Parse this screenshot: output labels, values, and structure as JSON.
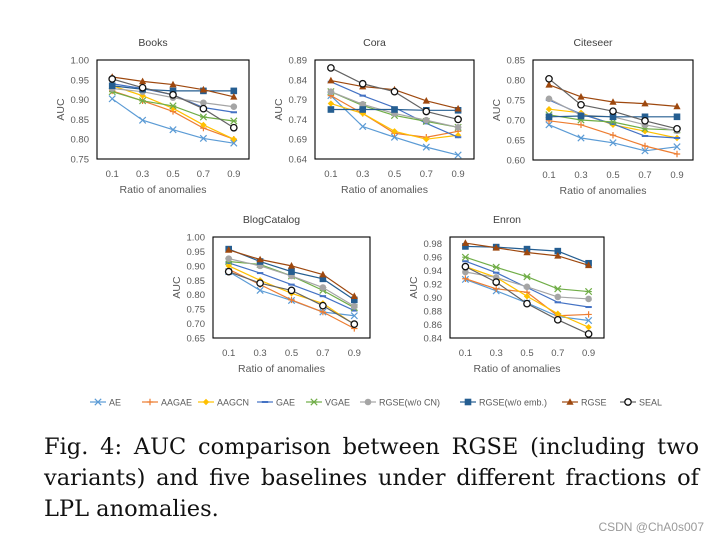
{
  "chart_data": [
    {
      "type": "line",
      "title": "Books",
      "xlabel": "Ratio of anomalies",
      "ylabel": "AUC",
      "categories": [
        "0.1",
        "0.3",
        "0.5",
        "0.7",
        "0.9"
      ],
      "ylim": [
        0.75,
        1.0
      ],
      "yticks": [
        "0.75",
        "0.80",
        "0.85",
        "0.90",
        "0.95",
        "1.00"
      ],
      "series": [
        {
          "name": "AE",
          "values": [
            0.902,
            0.848,
            0.824,
            0.802,
            0.79
          ]
        },
        {
          "name": "AAGAE",
          "values": [
            0.922,
            0.897,
            0.87,
            0.828,
            0.8
          ]
        },
        {
          "name": "AAGCN",
          "values": [
            0.935,
            0.91,
            0.878,
            0.836,
            0.8
          ]
        },
        {
          "name": "GAE",
          "values": [
            0.94,
            0.928,
            0.912,
            0.88,
            0.868
          ]
        },
        {
          "name": "VGAE",
          "values": [
            0.92,
            0.897,
            0.884,
            0.856,
            0.846
          ]
        },
        {
          "name": "RGSE(w/o CN)",
          "values": [
            0.928,
            0.92,
            0.905,
            0.892,
            0.882
          ]
        },
        {
          "name": "RGSE(w/o emb.)",
          "values": [
            0.935,
            0.926,
            0.922,
            0.922,
            0.922
          ]
        },
        {
          "name": "RGSE",
          "values": [
            0.957,
            0.946,
            0.938,
            0.925,
            0.907
          ]
        },
        {
          "name": "SEAL",
          "values": [
            0.952,
            0.93,
            0.912,
            0.877,
            0.829
          ]
        }
      ]
    },
    {
      "type": "line",
      "title": "Cora",
      "xlabel": "Ratio of anomalies",
      "ylabel": "AUC",
      "categories": [
        "0.1",
        "0.3",
        "0.5",
        "0.7",
        "0.9"
      ],
      "ylim": [
        0.64,
        0.89
      ],
      "yticks": [
        "0.64",
        "0.69",
        "0.74",
        "0.79",
        "0.84",
        "0.89"
      ],
      "series": [
        {
          "name": "AE",
          "values": [
            0.8,
            0.722,
            0.695,
            0.67,
            0.65
          ]
        },
        {
          "name": "AAGAE",
          "values": [
            0.8,
            0.755,
            0.705,
            0.695,
            0.71
          ]
        },
        {
          "name": "AAGCN",
          "values": [
            0.78,
            0.755,
            0.71,
            0.69,
            0.7
          ]
        },
        {
          "name": "GAE",
          "values": [
            0.835,
            0.8,
            0.77,
            0.73,
            0.695
          ]
        },
        {
          "name": "VGAE",
          "values": [
            0.81,
            0.775,
            0.75,
            0.735,
            0.72
          ]
        },
        {
          "name": "RGSE(w/o CN)",
          "values": [
            0.81,
            0.778,
            0.755,
            0.738,
            0.72
          ]
        },
        {
          "name": "RGSE(w/o emb.)",
          "values": [
            0.765,
            0.765,
            0.765,
            0.763,
            0.763
          ]
        },
        {
          "name": "RGSE",
          "values": [
            0.838,
            0.823,
            0.815,
            0.787,
            0.767
          ]
        },
        {
          "name": "SEAL",
          "values": [
            0.87,
            0.83,
            0.81,
            0.76,
            0.74
          ]
        }
      ]
    },
    {
      "type": "line",
      "title": "Citeseer",
      "xlabel": "Ratio of anomalies",
      "ylabel": "AUC",
      "categories": [
        "0.1",
        "0.3",
        "0.5",
        "0.7",
        "0.9"
      ],
      "ylim": [
        0.6,
        0.85
      ],
      "yticks": [
        "0.60",
        "0.65",
        "0.70",
        "0.75",
        "0.80",
        "0.85"
      ],
      "series": [
        {
          "name": "AE",
          "values": [
            0.688,
            0.655,
            0.643,
            0.623,
            0.633
          ]
        },
        {
          "name": "AAGAE",
          "values": [
            0.698,
            0.688,
            0.662,
            0.635,
            0.615
          ]
        },
        {
          "name": "AAGCN",
          "values": [
            0.727,
            0.718,
            0.688,
            0.672,
            0.655
          ]
        },
        {
          "name": "GAE",
          "values": [
            0.75,
            0.715,
            0.69,
            0.66,
            0.655
          ]
        },
        {
          "name": "VGAE",
          "values": [
            0.713,
            0.7,
            0.695,
            0.678,
            0.675
          ]
        },
        {
          "name": "RGSE(w/o CN)",
          "values": [
            0.753,
            0.712,
            0.708,
            0.688,
            0.673
          ]
        },
        {
          "name": "RGSE(w/o emb.)",
          "values": [
            0.708,
            0.71,
            0.708,
            0.708,
            0.708
          ]
        },
        {
          "name": "RGSE",
          "values": [
            0.788,
            0.758,
            0.745,
            0.741,
            0.734
          ]
        },
        {
          "name": "SEAL",
          "values": [
            0.803,
            0.738,
            0.722,
            0.698,
            0.678
          ]
        }
      ]
    },
    {
      "type": "line",
      "title": "BlogCatalog",
      "xlabel": "Ratio of anomalies",
      "ylabel": "AUC",
      "categories": [
        "0.1",
        "0.3",
        "0.5",
        "0.7",
        "0.9"
      ],
      "ylim": [
        0.65,
        1.0
      ],
      "yticks": [
        "0.65",
        "0.70",
        "0.75",
        "0.80",
        "0.85",
        "0.90",
        "0.95",
        "1.00"
      ],
      "series": [
        {
          "name": "AE",
          "values": [
            0.88,
            0.815,
            0.78,
            0.74,
            0.727
          ]
        },
        {
          "name": "AAGAE",
          "values": [
            0.888,
            0.835,
            0.782,
            0.74,
            0.683
          ]
        },
        {
          "name": "AAGCN",
          "values": [
            0.9,
            0.85,
            0.805,
            0.77,
            0.697
          ]
        },
        {
          "name": "GAE",
          "values": [
            0.91,
            0.875,
            0.835,
            0.795,
            0.745
          ]
        },
        {
          "name": "VGAE",
          "values": [
            0.915,
            0.905,
            0.865,
            0.815,
            0.755
          ]
        },
        {
          "name": "RGSE(w/o CN)",
          "values": [
            0.925,
            0.9,
            0.865,
            0.825,
            0.76
          ]
        },
        {
          "name": "RGSE(w/o emb.)",
          "values": [
            0.958,
            0.915,
            0.88,
            0.855,
            0.782
          ]
        },
        {
          "name": "RGSE",
          "values": [
            0.955,
            0.922,
            0.9,
            0.87,
            0.795
          ]
        },
        {
          "name": "SEAL",
          "values": [
            0.88,
            0.84,
            0.815,
            0.762,
            0.698
          ]
        }
      ]
    },
    {
      "type": "line",
      "title": "Enron",
      "xlabel": "Ratio of anomalies",
      "ylabel": "AUC",
      "categories": [
        "0.1",
        "0.3",
        "0.5",
        "0.7",
        "0.9"
      ],
      "ylim": [
        0.84,
        0.99
      ],
      "yticks": [
        "0.84",
        "0.86",
        "0.88",
        "0.90",
        "0.92",
        "0.94",
        "0.96",
        "0.98"
      ],
      "series": [
        {
          "name": "AE",
          "values": [
            0.927,
            0.91,
            0.892,
            0.872,
            0.866
          ]
        },
        {
          "name": "AAGAE",
          "values": [
            0.928,
            0.913,
            0.908,
            0.873,
            0.875
          ]
        },
        {
          "name": "AAGCN",
          "values": [
            0.946,
            0.93,
            0.902,
            0.876,
            0.856
          ]
        },
        {
          "name": "GAE",
          "values": [
            0.954,
            0.937,
            0.915,
            0.893,
            0.886
          ]
        },
        {
          "name": "VGAE",
          "values": [
            0.96,
            0.945,
            0.931,
            0.913,
            0.909
          ]
        },
        {
          "name": "RGSE(w/o CN)",
          "values": [
            0.938,
            0.93,
            0.916,
            0.901,
            0.898
          ]
        },
        {
          "name": "RGSE(w/o emb.)",
          "values": [
            0.976,
            0.975,
            0.972,
            0.969,
            0.951
          ]
        },
        {
          "name": "RGSE",
          "values": [
            0.981,
            0.974,
            0.967,
            0.962,
            0.948
          ]
        },
        {
          "name": "SEAL",
          "values": [
            0.946,
            0.923,
            0.891,
            0.867,
            0.846
          ]
        }
      ]
    }
  ],
  "legend": {
    "placement": "bottom",
    "items": [
      {
        "name": "AE",
        "color": "#5b9bd5",
        "marker": "x"
      },
      {
        "name": "AAGAE",
        "color": "#ed7d31",
        "marker": "plus"
      },
      {
        "name": "AAGCN",
        "color": "#ffc000",
        "marker": "diamond"
      },
      {
        "name": "GAE",
        "color": "#4472c4",
        "marker": "dash"
      },
      {
        "name": "VGAE",
        "color": "#70ad47",
        "marker": "star"
      },
      {
        "name": "RGSE(w/o CN)",
        "color": "#a5a5a5",
        "marker": "circle"
      },
      {
        "name": "RGSE(w/o emb.)",
        "color": "#255e91",
        "marker": "square"
      },
      {
        "name": "RGSE",
        "color": "#9e480e",
        "marker": "triangle"
      },
      {
        "name": "SEAL",
        "color": "#636363",
        "marker": "open-circle"
      }
    ]
  },
  "caption": "Fig. 4: AUC comparison between RGSE (including two variants) and five baselines under different fractions of LPL anomalies.",
  "watermark": "CSDN @ChA0s007"
}
